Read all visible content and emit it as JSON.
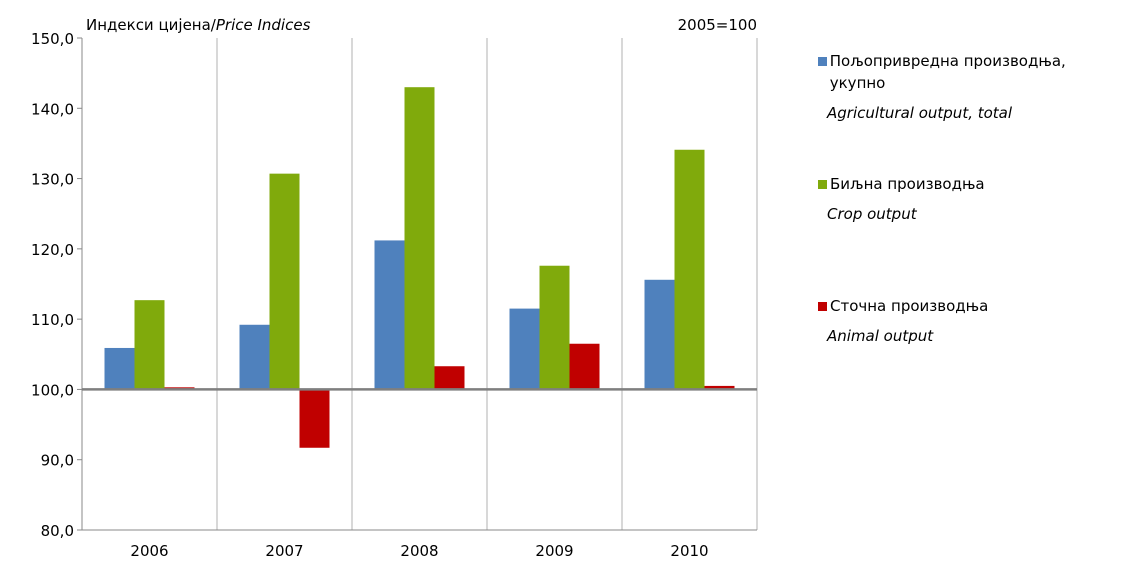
{
  "chart_data": {
    "type": "bar",
    "title": "Индекси цијена/",
    "title_en": "Price Indices",
    "annotation": "2005=100",
    "categories": [
      "2006",
      "2007",
      "2008",
      "2009",
      "2010"
    ],
    "series": [
      {
        "name": "Пољопривредна производња, укупно",
        "name_en": "Agricultural output, total",
        "color": "#4f81bd",
        "values": [
          105.9,
          109.2,
          121.2,
          111.5,
          115.6
        ]
      },
      {
        "name": "Биљна производња",
        "name_en": "Crop output",
        "color": "#80aa0c",
        "values": [
          112.7,
          130.7,
          143.0,
          117.6,
          134.1
        ]
      },
      {
        "name": "Сточна производња",
        "name_en": "Animal output",
        "color": "#c00000",
        "values": [
          100.3,
          91.7,
          103.3,
          106.5,
          100.5
        ]
      }
    ],
    "baseline": 100,
    "ylim": [
      80,
      150
    ],
    "yticks": [
      {
        "value": 80,
        "label": "80,0"
      },
      {
        "value": 90,
        "label": "90,0"
      },
      {
        "value": 100,
        "label": "100,0"
      },
      {
        "value": 110,
        "label": "110,0"
      },
      {
        "value": 120,
        "label": "120,0"
      },
      {
        "value": 130,
        "label": "130,0"
      },
      {
        "value": 140,
        "label": "140,0"
      },
      {
        "value": 150,
        "label": "150,0"
      }
    ],
    "legend": "right"
  }
}
